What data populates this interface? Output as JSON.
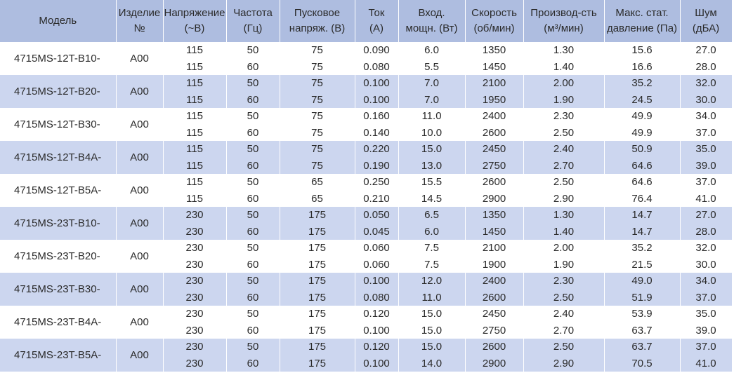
{
  "table": {
    "header": [
      [
        "Модель"
      ],
      [
        "Изделие",
        "№"
      ],
      [
        "Напряжение",
        "(~В)"
      ],
      [
        "Частота",
        "(Гц)"
      ],
      [
        "Пусковое",
        "напряж. (В)"
      ],
      [
        "Ток",
        "(А)"
      ],
      [
        "Вход.",
        "мощн. (Вт)"
      ],
      [
        "Скорость",
        "(об/мин)"
      ],
      [
        "Производ-сть",
        "(м³/мин)"
      ],
      [
        "Макс. стат.",
        "давление (Па)"
      ],
      [
        "Шум",
        "(дБА)"
      ]
    ],
    "groups": [
      {
        "model": "4715MS-12T-B10-",
        "item": "A00",
        "lines": [
          [
            "115",
            "50",
            "75",
            "0.090",
            "6.0",
            "1350",
            "1.30",
            "15.6",
            "27.0"
          ],
          [
            "115",
            "60",
            "75",
            "0.080",
            "5.5",
            "1450",
            "1.40",
            "16.6",
            "28.0"
          ]
        ]
      },
      {
        "model": "4715MS-12T-B20-",
        "item": "A00",
        "lines": [
          [
            "115",
            "50",
            "75",
            "0.100",
            "7.0",
            "2100",
            "2.00",
            "35.2",
            "32.0"
          ],
          [
            "115",
            "60",
            "75",
            "0.100",
            "7.0",
            "1950",
            "1.90",
            "24.5",
            "30.0"
          ]
        ]
      },
      {
        "model": "4715MS-12T-B30-",
        "item": "A00",
        "lines": [
          [
            "115",
            "50",
            "75",
            "0.160",
            "11.0",
            "2400",
            "2.30",
            "49.9",
            "34.0"
          ],
          [
            "115",
            "60",
            "75",
            "0.140",
            "10.0",
            "2600",
            "2.50",
            "49.9",
            "37.0"
          ]
        ]
      },
      {
        "model": "4715MS-12T-B4A-",
        "item": "A00",
        "lines": [
          [
            "115",
            "50",
            "75",
            "0.220",
            "15.0",
            "2450",
            "2.40",
            "50.9",
            "35.0"
          ],
          [
            "115",
            "60",
            "75",
            "0.190",
            "13.0",
            "2750",
            "2.70",
            "64.6",
            "39.0"
          ]
        ]
      },
      {
        "model": "4715MS-12T-B5A-",
        "item": "A00",
        "lines": [
          [
            "115",
            "50",
            "65",
            "0.250",
            "15.5",
            "2600",
            "2.50",
            "64.6",
            "37.0"
          ],
          [
            "115",
            "60",
            "65",
            "0.210",
            "14.5",
            "2900",
            "2.90",
            "76.4",
            "41.0"
          ]
        ]
      },
      {
        "model": "4715MS-23T-B10-",
        "item": "A00",
        "lines": [
          [
            "230",
            "50",
            "175",
            "0.050",
            "6.5",
            "1350",
            "1.30",
            "14.7",
            "27.0"
          ],
          [
            "230",
            "60",
            "175",
            "0.045",
            "6.0",
            "1450",
            "1.40",
            "14.7",
            "28.0"
          ]
        ]
      },
      {
        "model": "4715MS-23T-B20-",
        "item": "A00",
        "lines": [
          [
            "230",
            "50",
            "175",
            "0.060",
            "7.5",
            "2100",
            "2.00",
            "35.2",
            "32.0"
          ],
          [
            "230",
            "60",
            "175",
            "0.060",
            "7.5",
            "1900",
            "1.90",
            "21.5",
            "30.0"
          ]
        ]
      },
      {
        "model": "4715MS-23T-B30-",
        "item": "A00",
        "lines": [
          [
            "230",
            "50",
            "175",
            "0.100",
            "12.0",
            "2400",
            "2.30",
            "49.0",
            "34.0"
          ],
          [
            "230",
            "60",
            "175",
            "0.080",
            "11.0",
            "2600",
            "2.50",
            "51.9",
            "37.0"
          ]
        ]
      },
      {
        "model": "4715MS-23T-B4A-",
        "item": "A00",
        "lines": [
          [
            "230",
            "50",
            "175",
            "0.120",
            "15.0",
            "2450",
            "2.40",
            "53.9",
            "35.0"
          ],
          [
            "230",
            "60",
            "175",
            "0.100",
            "15.0",
            "2750",
            "2.70",
            "63.7",
            "39.0"
          ]
        ]
      },
      {
        "model": "4715MS-23T-B5A-",
        "item": "A00",
        "lines": [
          [
            "230",
            "50",
            "175",
            "0.120",
            "15.0",
            "2600",
            "2.50",
            "63.7",
            "37.0"
          ],
          [
            "230",
            "60",
            "175",
            "0.100",
            "14.0",
            "2900",
            "2.90",
            "70.5",
            "41.0"
          ]
        ]
      }
    ]
  }
}
